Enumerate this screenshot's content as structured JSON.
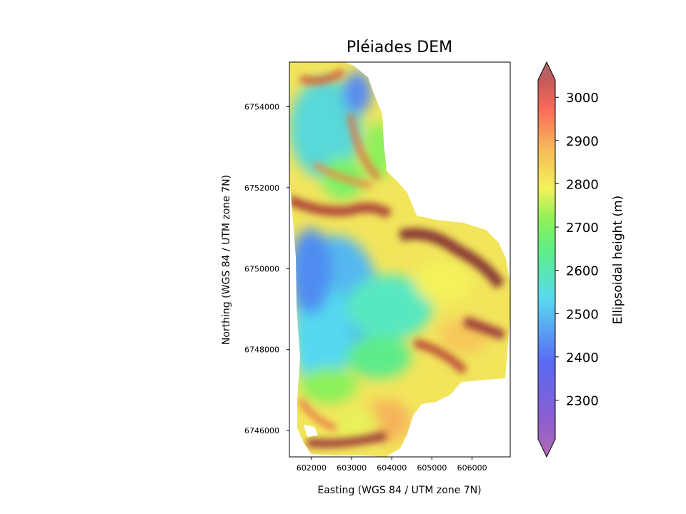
{
  "chart_data": {
    "type": "heatmap",
    "title": "Pléiades DEM",
    "xlabel": "Easting (WGS 84 / UTM zone 7N)",
    "ylabel": "Northing (WGS 84 / UTM zone 7N)",
    "xlim": [
      601450,
      606950
    ],
    "ylim": [
      6745350,
      6755100
    ],
    "x_ticks": [
      602000,
      603000,
      604000,
      605000,
      606000
    ],
    "y_ticks": [
      6746000,
      6748000,
      6750000,
      6752000,
      6754000
    ],
    "x_tick_labels": [
      "602000",
      "603000",
      "604000",
      "605000",
      "606000"
    ],
    "y_tick_labels": [
      "6746000",
      "6748000",
      "6750000",
      "6752000",
      "6754000"
    ],
    "colorbar": {
      "label": "Ellipsoidal height (m)",
      "range": [
        2210,
        3040
      ],
      "ticks": [
        2300,
        2400,
        2500,
        2600,
        2700,
        2800,
        2900,
        3000
      ],
      "tick_labels": [
        "2300",
        "2400",
        "2500",
        "2600",
        "2700",
        "2800",
        "2900",
        "3000"
      ],
      "extend": "both",
      "colormap": "rainbow (purple-blue-cyan-green-yellow-orange-red-brown), semi-transparent over hillshade"
    },
    "surface": {
      "description_values_m": "approximate elevations read from the colour scale",
      "low_area": {
        "center": [
          602400,
          6749500
        ],
        "value": 2480
      },
      "northwest_basin": {
        "center": [
          602200,
          6754500
        ],
        "value": 2520
      },
      "northeast_low": {
        "center": [
          603700,
          6754200
        ],
        "value": 2420
      },
      "ridge_crests": [
        {
          "center": [
            603000,
            6751300
          ],
          "value": 2980
        },
        {
          "center": [
            605200,
            6750700
          ],
          "value": 3000
        },
        {
          "center": [
            606500,
            6749200
          ],
          "value": 2950
        },
        {
          "center": [
            605000,
            6747800
          ],
          "value": 2900
        },
        {
          "center": [
            603500,
            6745800
          ],
          "value": 2900
        }
      ],
      "typical_slopes": 2700
    }
  }
}
